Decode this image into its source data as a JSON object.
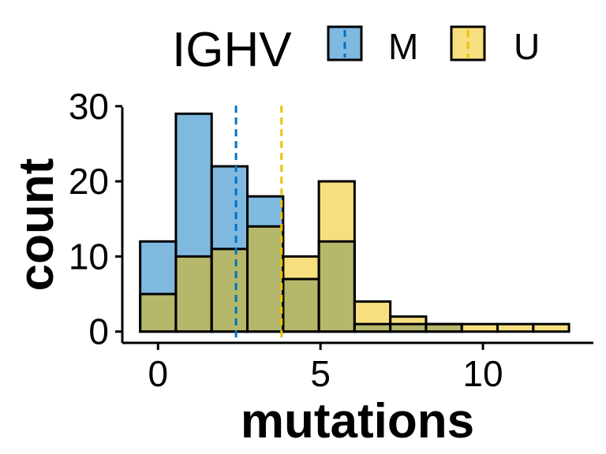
{
  "chart_data": {
    "type": "histogram",
    "xlabel": "mutations",
    "ylabel": "count",
    "xlim": [
      -1.1,
      13.4
    ],
    "ylim": [
      -1.5,
      30.5
    ],
    "x_ticks": [
      0,
      5,
      10
    ],
    "y_ticks": [
      0,
      10,
      20,
      30
    ],
    "bins": [
      {
        "x0": -0.55,
        "x1": 0.55
      },
      {
        "x0": 0.55,
        "x1": 1.65
      },
      {
        "x0": 1.65,
        "x1": 2.75
      },
      {
        "x0": 2.75,
        "x1": 3.85
      },
      {
        "x0": 3.85,
        "x1": 4.95
      },
      {
        "x0": 4.95,
        "x1": 6.05
      },
      {
        "x0": 6.05,
        "x1": 7.15
      },
      {
        "x0": 7.15,
        "x1": 8.25
      },
      {
        "x0": 8.25,
        "x1": 9.35
      },
      {
        "x0": 9.35,
        "x1": 10.45
      },
      {
        "x0": 10.45,
        "x1": 11.55
      },
      {
        "x0": 11.55,
        "x1": 12.65
      }
    ],
    "series": [
      {
        "name": "M",
        "color": "#0073C2",
        "counts": [
          12,
          29,
          22,
          18,
          7,
          12,
          1,
          1,
          1,
          0,
          0,
          0
        ],
        "mean": 2.4
      },
      {
        "name": "U",
        "color": "#EFC000",
        "counts": [
          5,
          10,
          11,
          14,
          10,
          20,
          4,
          2,
          1,
          1,
          1,
          1
        ],
        "mean": 3.8
      }
    ],
    "overlap_color": "#b5b86a",
    "legend": {
      "title": "IGHV",
      "position": "top"
    },
    "grid": false
  }
}
